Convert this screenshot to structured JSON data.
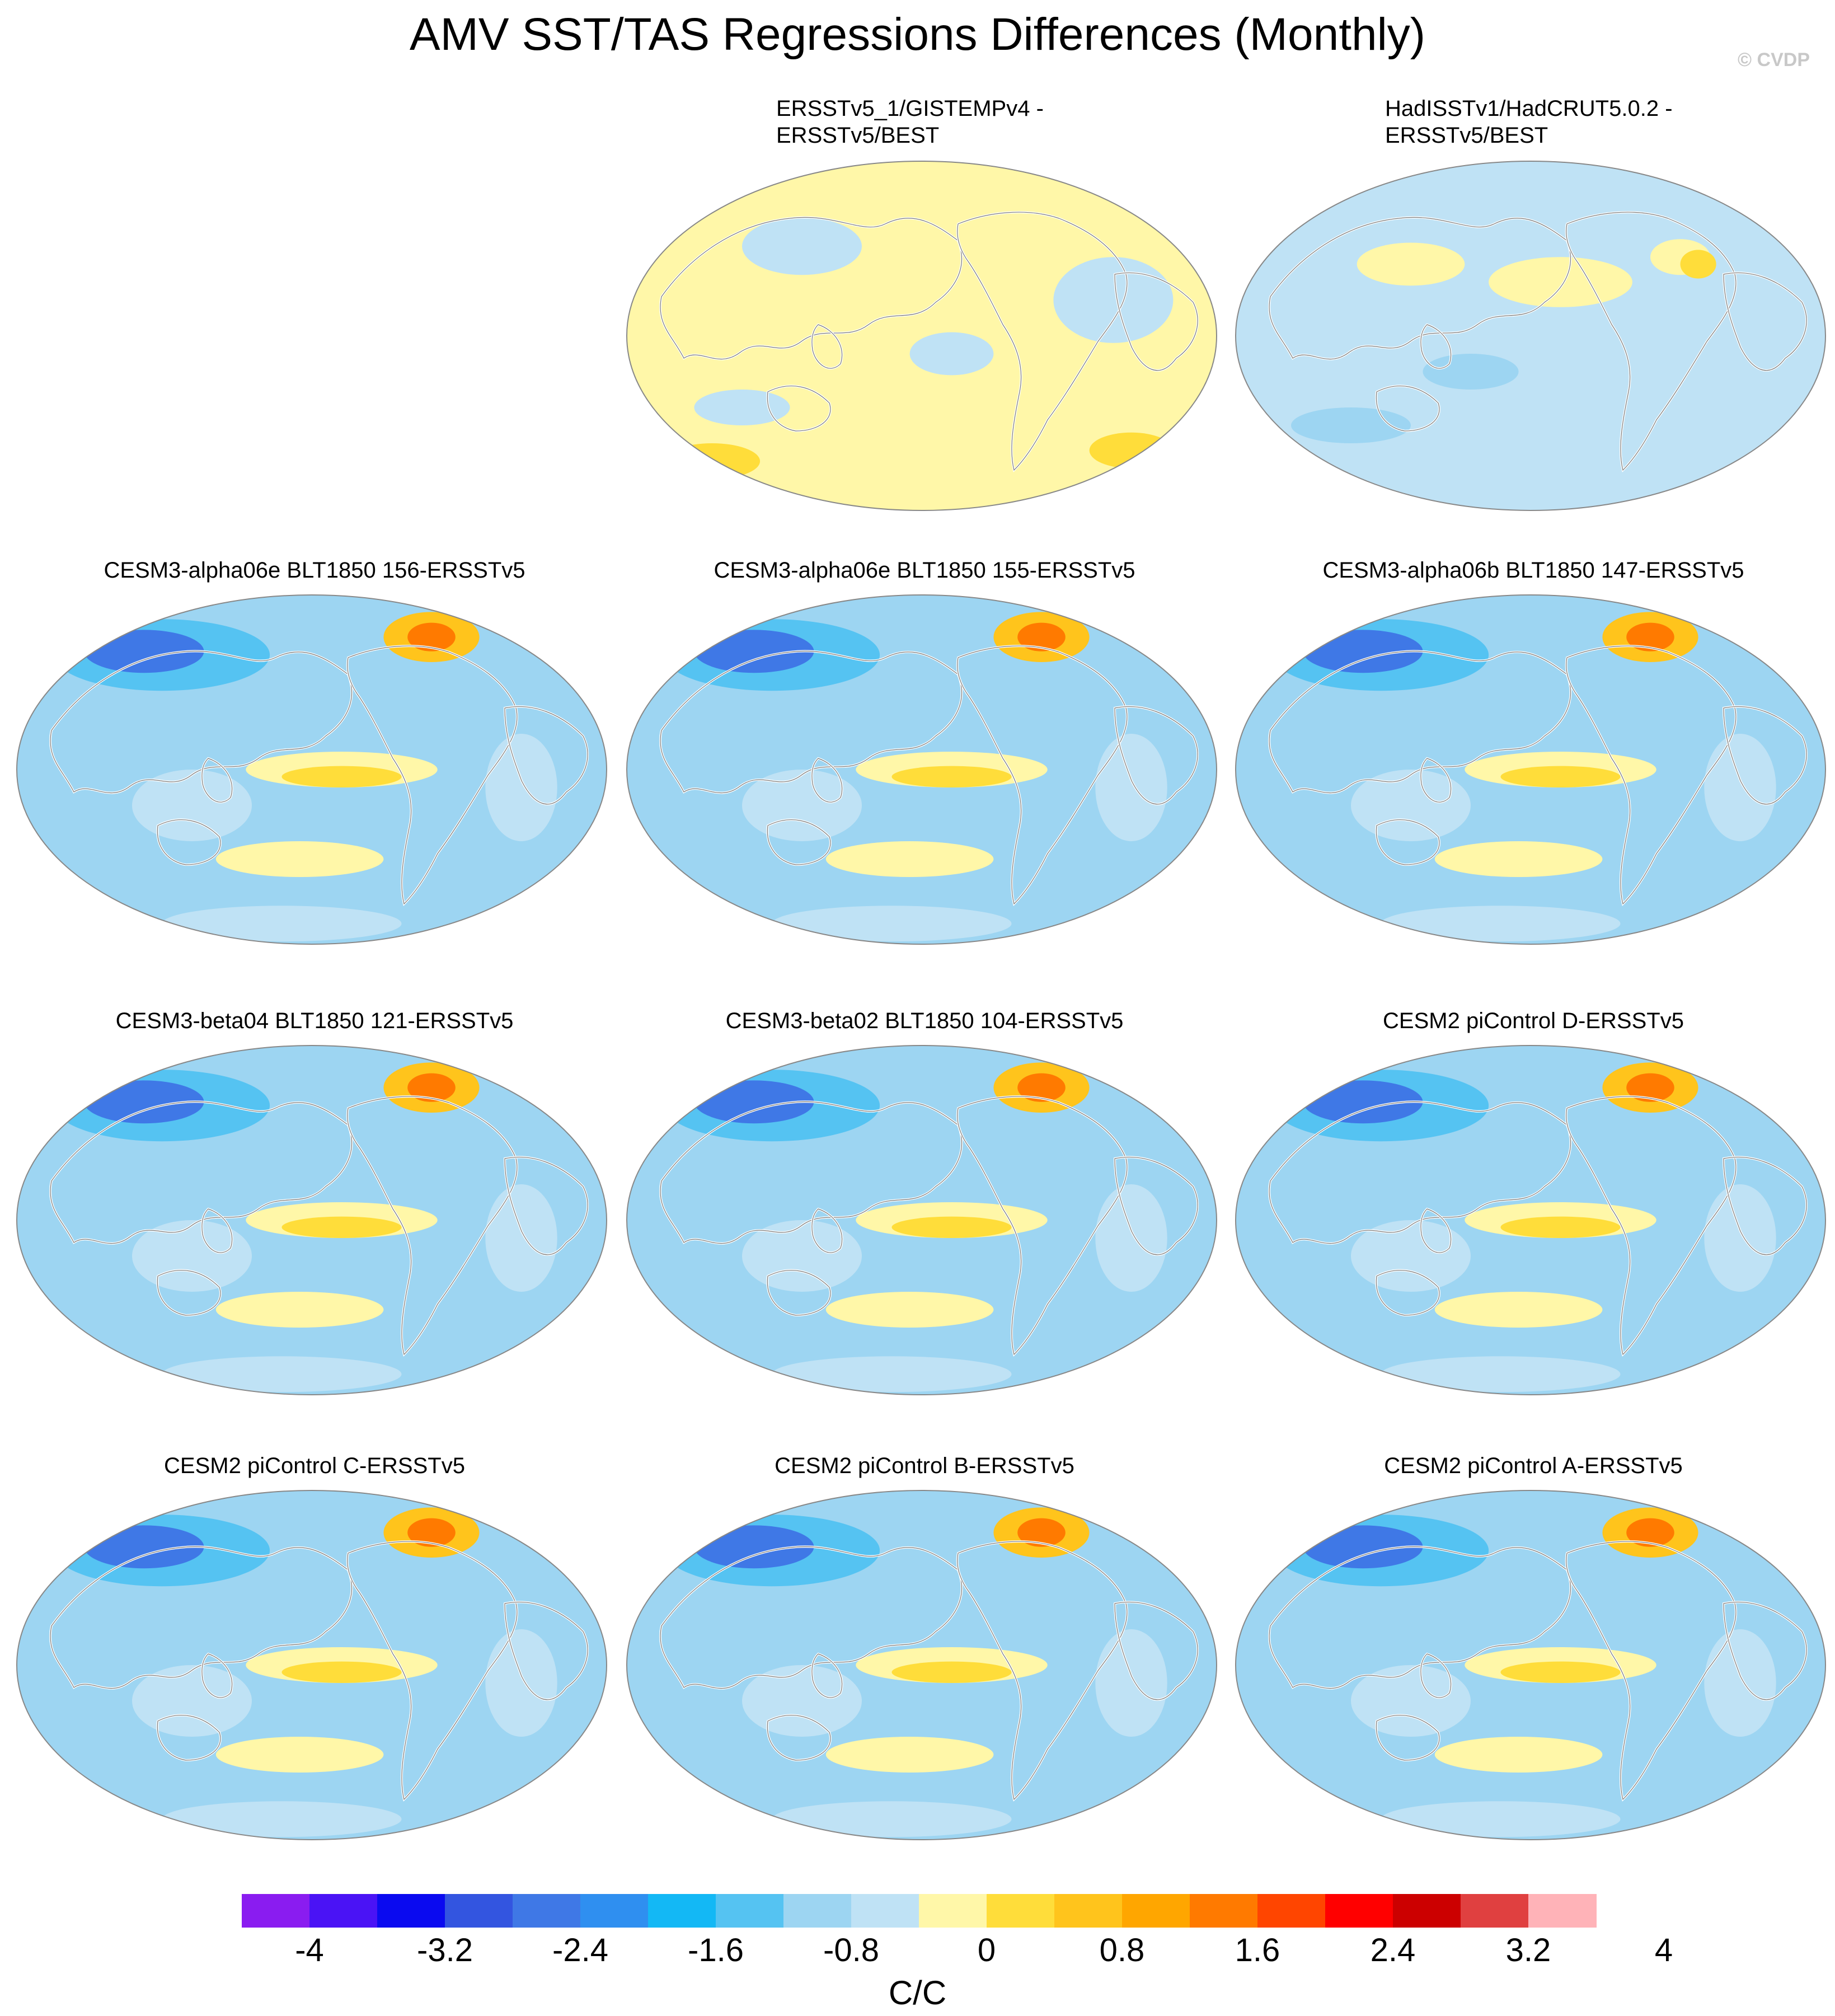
{
  "title": "AMV SST/TAS Regressions Differences (Monthly)",
  "watermark": "© CVDP",
  "panels": [
    {
      "label": "ERSSTv5_1/GISTEMPv4 -\nERSSTv5/BEST",
      "row": 0,
      "col": 1,
      "base": "yellow"
    },
    {
      "label": "HadISSTv1/HadCRUT5.0.2 -\nERSSTv5/BEST",
      "row": 0,
      "col": 2,
      "base": "paleblue"
    },
    {
      "label": "CESM3-alpha06e BLT1850 156-ERSSTv5",
      "row": 1,
      "col": 0,
      "base": "blue"
    },
    {
      "label": "CESM3-alpha06e BLT1850 155-ERSSTv5",
      "row": 1,
      "col": 1,
      "base": "blue"
    },
    {
      "label": "CESM3-alpha06b BLT1850 147-ERSSTv5",
      "row": 1,
      "col": 2,
      "base": "blue"
    },
    {
      "label": "CESM3-beta04 BLT1850 121-ERSSTv5",
      "row": 2,
      "col": 0,
      "base": "blue"
    },
    {
      "label": "CESM3-beta02 BLT1850 104-ERSSTv5",
      "row": 2,
      "col": 1,
      "base": "blue"
    },
    {
      "label": "CESM2 piControl D-ERSSTv5",
      "row": 2,
      "col": 2,
      "base": "blue"
    },
    {
      "label": "CESM2 piControl C-ERSSTv5",
      "row": 3,
      "col": 0,
      "base": "blue"
    },
    {
      "label": "CESM2 piControl B-ERSSTv5",
      "row": 3,
      "col": 1,
      "base": "blue"
    },
    {
      "label": "CESM2 piControl A-ERSSTv5",
      "row": 3,
      "col": 2,
      "base": "blue"
    }
  ],
  "colorbar": {
    "colors": [
      "#8a1cf0",
      "#4a13f5",
      "#0a0af0",
      "#3355e0",
      "#3f78e6",
      "#2f8ff0",
      "#13b8f5",
      "#55c3f2",
      "#9dd5f2",
      "#bfe2f5",
      "#fff7a8",
      "#ffdd3a",
      "#ffc41c",
      "#ffa600",
      "#ff7a00",
      "#ff4500",
      "#ff0000",
      "#cc0000",
      "#e04040",
      "#ffb3b8"
    ],
    "ticks": [
      "-4",
      "-3.2",
      "-2.4",
      "-1.6",
      "-0.8",
      "0",
      "0.8",
      "1.6",
      "2.4",
      "3.2",
      "4"
    ],
    "units": "C/C"
  }
}
